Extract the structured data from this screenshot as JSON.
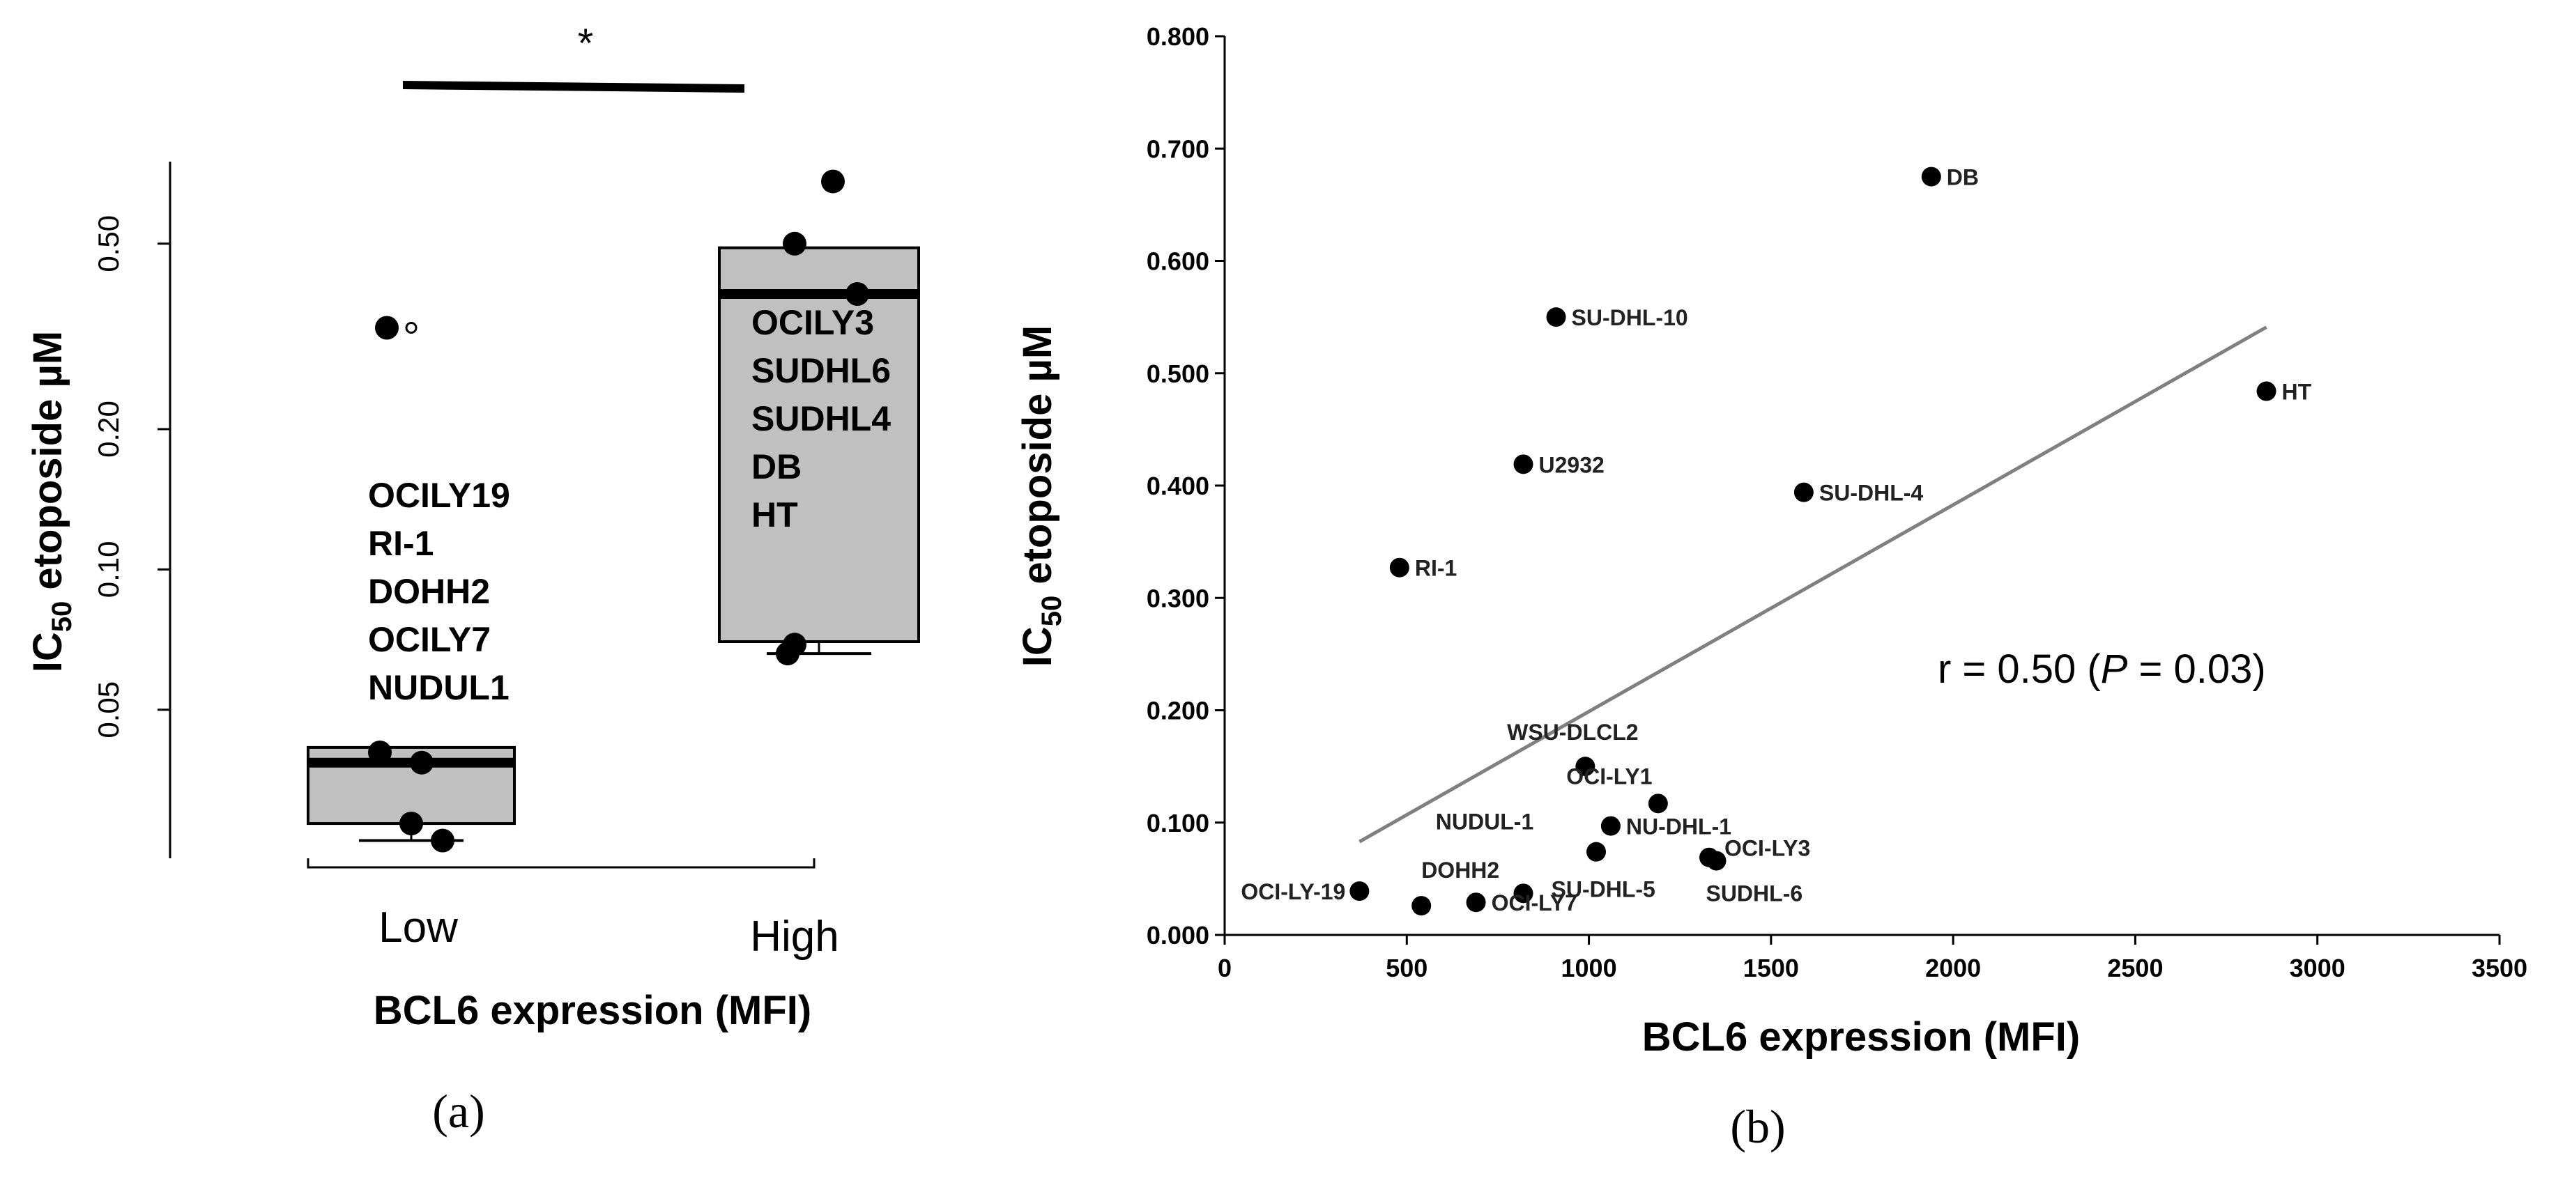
{
  "chart_data": [
    {
      "type": "box",
      "panel_label": "(a)",
      "xlabel": "BCL6 expression (MFI)",
      "ylabel": {
        "prefix": "IC",
        "subscript": "50",
        "suffix": " etoposide µM"
      },
      "yscale": "log",
      "ylim": [
        0.024,
        0.75
      ],
      "yticks": [
        "0.50",
        "0.20",
        "0.10",
        "0.05"
      ],
      "significance": "*",
      "groups": [
        {
          "name": "Low",
          "box": {
            "q1": 0.0285,
            "median": 0.0385,
            "q3": 0.0415,
            "whisker_low": 0.0262,
            "whisker_high": 0.0415
          },
          "points": [
            0.0405,
            0.0385,
            0.0285,
            0.0262,
            0.33
          ],
          "outlier_marker": 0.33,
          "cell_lines": [
            "OCILY19",
            "RI-1",
            "DOHH2",
            "OCILY7",
            "NUDUL1"
          ]
        },
        {
          "name": "High",
          "box": {
            "q1": 0.07,
            "median": 0.39,
            "q3": 0.49,
            "whisker_low": 0.066,
            "whisker_high": 0.49
          },
          "points": [
            0.68,
            0.5,
            0.39,
            0.069,
            0.066
          ],
          "cell_lines": [
            "OCILY3",
            "SUDHL6",
            "SUDHL4",
            "DB",
            "HT"
          ]
        }
      ]
    },
    {
      "type": "scatter",
      "panel_label": "(b)",
      "xlabel": "BCL6 expression (MFI)",
      "ylabel": {
        "prefix": "IC",
        "subscript": "50",
        "suffix": " etoposide µM"
      },
      "xlim": [
        0,
        3500
      ],
      "ylim": [
        0,
        0.8
      ],
      "xticks": [
        "0",
        "500",
        "1000",
        "1500",
        "2000",
        "2500",
        "3000",
        "3500"
      ],
      "yticks": [
        "0.000",
        "0.100",
        "0.200",
        "0.300",
        "0.400",
        "0.500",
        "0.600",
        "0.700",
        "0.800"
      ],
      "points": [
        {
          "label": "DB",
          "x": 1940,
          "y": 0.675
        },
        {
          "label": "SU-DHL-10",
          "x": 910,
          "y": 0.55
        },
        {
          "label": "HT",
          "x": 2860,
          "y": 0.484
        },
        {
          "label": "U2932",
          "x": 820,
          "y": 0.419
        },
        {
          "label": "SU-DHL-4",
          "x": 1590,
          "y": 0.394
        },
        {
          "label": "RI-1",
          "x": 480,
          "y": 0.327
        },
        {
          "label": "WSU-DLCL2",
          "x": 990,
          "y": 0.15
        },
        {
          "label": "OCI-LY1",
          "x": 1190,
          "y": 0.117
        },
        {
          "label": "NU-DHL-1",
          "x": 1060,
          "y": 0.097
        },
        {
          "label": "NUDUL-1",
          "x": 1020,
          "y": 0.074
        },
        {
          "label": "OCI-LY3",
          "x": 1330,
          "y": 0.069
        },
        {
          "label": "SUDHL-6",
          "x": 1350,
          "y": 0.066
        },
        {
          "label": "SU-DHL-5",
          "x": 820,
          "y": 0.037
        },
        {
          "label": "OCI-LY-19",
          "x": 370,
          "y": 0.039
        },
        {
          "label": "DOHH2",
          "x": 540,
          "y": 0.026
        },
        {
          "label": "OCI-LY7",
          "x": 690,
          "y": 0.029
        }
      ],
      "trendline": {
        "x": [
          370,
          2860
        ],
        "y": [
          0.083,
          0.541
        ]
      },
      "annotation": {
        "pre": "r = 0.50 (",
        "italic": "P",
        "post": " = 0.03)"
      }
    }
  ]
}
